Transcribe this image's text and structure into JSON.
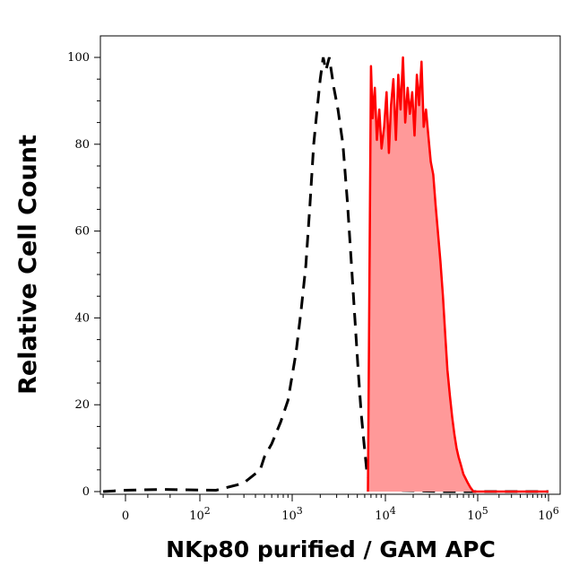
{
  "chart_data": {
    "type": "area",
    "xlabel": "NKp80 purified / GAM APC",
    "ylabel": "Relative Cell Count",
    "x_scale": "biexponential (log above ~10^2)",
    "ylim": [
      0,
      100
    ],
    "y_ticks": [
      "0",
      "20",
      "40",
      "60",
      "80",
      "100"
    ],
    "x_ticks": [
      {
        "base": "0",
        "exp": "",
        "value": 0
      },
      {
        "base": "10",
        "exp": "2",
        "value": 100
      },
      {
        "base": "10",
        "exp": "3",
        "value": 1000
      },
      {
        "base": "10",
        "exp": "4",
        "value": 10000
      },
      {
        "base": "10",
        "exp": "5",
        "value": 100000
      },
      {
        "base": "10",
        "exp": "6",
        "value": 1000000
      }
    ],
    "grid": false,
    "series": [
      {
        "style": "dashed",
        "color": "#000000",
        "filled": false,
        "points": [
          [
            -30,
            0
          ],
          [
            0,
            0.3
          ],
          [
            50,
            0.5
          ],
          [
            150,
            0.3
          ],
          [
            250,
            1.5
          ],
          [
            300,
            2
          ],
          [
            450,
            5
          ],
          [
            500,
            8
          ],
          [
            600,
            11
          ],
          [
            750,
            16
          ],
          [
            900,
            21
          ],
          [
            1100,
            32
          ],
          [
            1250,
            42
          ],
          [
            1400,
            52
          ],
          [
            1550,
            66
          ],
          [
            1700,
            80
          ],
          [
            1850,
            88
          ],
          [
            2000,
            95
          ],
          [
            2150,
            100
          ],
          [
            2300,
            97
          ],
          [
            2500,
            100
          ],
          [
            2800,
            93
          ],
          [
            3100,
            88
          ],
          [
            3500,
            80
          ],
          [
            3900,
            67
          ],
          [
            4300,
            53
          ],
          [
            4700,
            40
          ],
          [
            5100,
            28
          ],
          [
            5500,
            18
          ],
          [
            5900,
            11
          ],
          [
            6300,
            5
          ],
          [
            6800,
            1.5
          ],
          [
            8000,
            0.5
          ],
          [
            12000,
            0.3
          ],
          [
            20000,
            0.2
          ],
          [
            40000,
            0
          ],
          [
            100000,
            0
          ],
          [
            1000000,
            0
          ]
        ]
      },
      {
        "style": "solid",
        "color": "#ff0000",
        "fill": "#ff9999",
        "filled": true,
        "points": [
          [
            6500,
            0
          ],
          [
            7000,
            98
          ],
          [
            7300,
            86
          ],
          [
            7700,
            93
          ],
          [
            8100,
            81
          ],
          [
            8600,
            88
          ],
          [
            9100,
            79
          ],
          [
            9700,
            84
          ],
          [
            10300,
            92
          ],
          [
            10900,
            78
          ],
          [
            11500,
            89
          ],
          [
            12200,
            95
          ],
          [
            13000,
            81
          ],
          [
            13800,
            96
          ],
          [
            14600,
            88
          ],
          [
            15500,
            100
          ],
          [
            16400,
            85
          ],
          [
            17400,
            93
          ],
          [
            18400,
            87
          ],
          [
            19500,
            92
          ],
          [
            20700,
            82
          ],
          [
            21900,
            96
          ],
          [
            23200,
            89
          ],
          [
            24600,
            99
          ],
          [
            26000,
            84
          ],
          [
            27500,
            88
          ],
          [
            29200,
            82
          ],
          [
            31000,
            76
          ],
          [
            33000,
            73
          ],
          [
            35000,
            66
          ],
          [
            37000,
            60
          ],
          [
            39500,
            53
          ],
          [
            42000,
            45
          ],
          [
            44500,
            36
          ],
          [
            47000,
            28
          ],
          [
            50000,
            22
          ],
          [
            53000,
            17
          ],
          [
            56000,
            13
          ],
          [
            59000,
            10
          ],
          [
            62000,
            8
          ],
          [
            66000,
            6
          ],
          [
            70000,
            4
          ],
          [
            74000,
            3
          ],
          [
            78000,
            2
          ],
          [
            83000,
            1
          ],
          [
            90000,
            0
          ],
          [
            150000,
            0
          ],
          [
            1000000,
            0
          ]
        ]
      }
    ]
  }
}
